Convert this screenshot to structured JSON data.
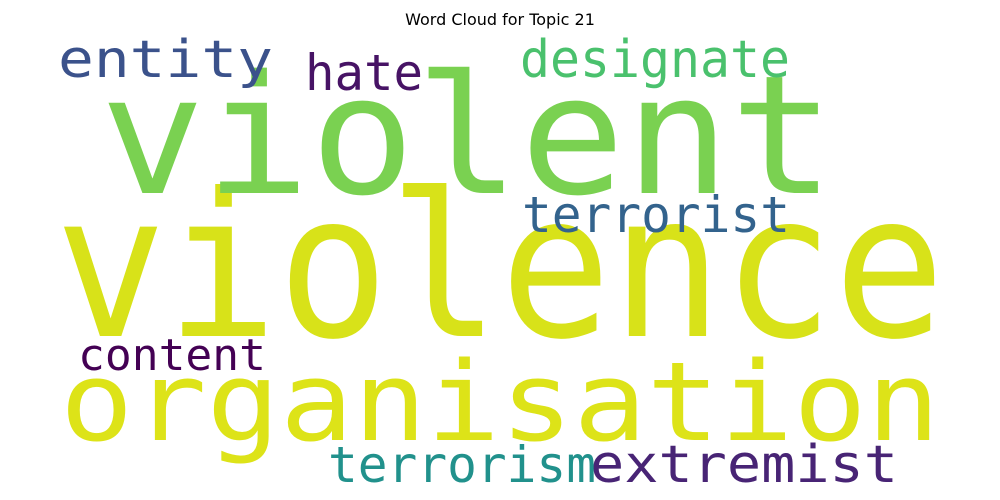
{
  "chart_data": {
    "type": "wordcloud",
    "title": "Word Cloud for Topic 21",
    "words": [
      {
        "text": "violence",
        "weight": 1.0,
        "color": "#d8e219"
      },
      {
        "text": "violent",
        "weight": 0.9,
        "color": "#7ad151"
      },
      {
        "text": "organisation",
        "weight": 0.6,
        "color": "#dde318"
      },
      {
        "text": "extremist",
        "weight": 0.3,
        "color": "#482475"
      },
      {
        "text": "terrorism",
        "weight": 0.27,
        "color": "#21918c"
      },
      {
        "text": "designate",
        "weight": 0.25,
        "color": "#4ac16d"
      },
      {
        "text": "terrorist",
        "weight": 0.24,
        "color": "#33638d"
      },
      {
        "text": "entity",
        "weight": 0.25,
        "color": "#3b528b"
      },
      {
        "text": "hate",
        "weight": 0.24,
        "color": "#471365"
      },
      {
        "text": "content",
        "weight": 0.22,
        "color": "#440154"
      }
    ]
  }
}
